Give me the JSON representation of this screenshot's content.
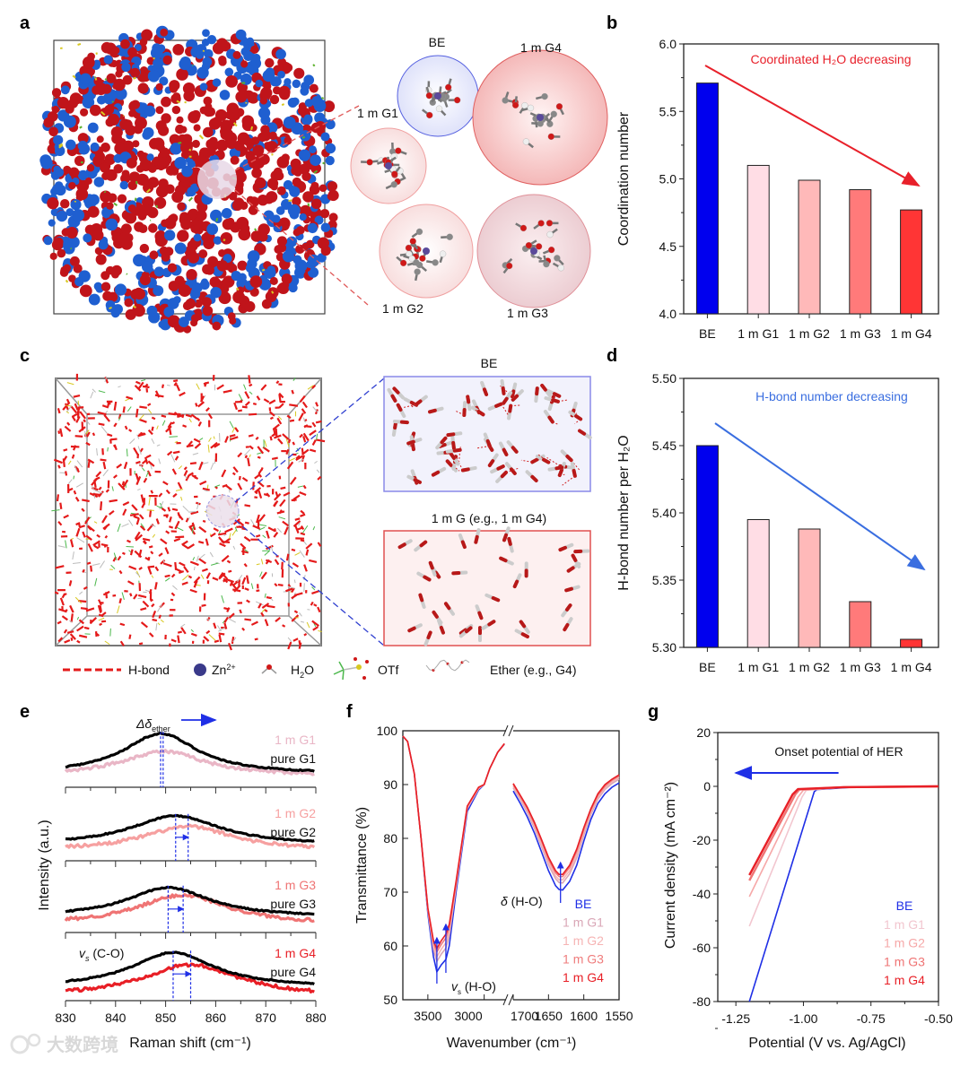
{
  "panel_labels": {
    "a": "a",
    "b": "b",
    "c": "c",
    "d": "d",
    "e": "e",
    "f": "f",
    "g": "g"
  },
  "panel_a": {
    "be": "BE",
    "g1": "1 m G1",
    "g2": "1 m G2",
    "g3": "1 m G3",
    "g4": "1 m G4"
  },
  "panel_c": {
    "inset_top_title": "BE",
    "inset_bottom_title": "1 m G (e.g., 1 m G4)",
    "legend": {
      "hbond": "H-bond",
      "zn": "Zn",
      "zn_sup": "2+",
      "h2o": "H",
      "h2o_sub": "2",
      "h2o_rest": "O",
      "otf": "OTf",
      "ether": "Ether (e.g., G4)"
    }
  },
  "watermark": "大数跨境",
  "colors": {
    "BE": "#1f2fe6",
    "G1": "#e9b6c6",
    "G2": "#f6abab",
    "G3": "#ef7474",
    "G4": "#e81f26"
  },
  "chart_data": [
    {
      "id": "b",
      "type": "bar",
      "categories": [
        "BE",
        "1 m G1",
        "1 m G2",
        "1 m G3",
        "1 m G4"
      ],
      "values": [
        5.71,
        5.1,
        4.99,
        4.92,
        4.77
      ],
      "bar_colors": [
        "#0000ee",
        "#ffdde5",
        "#ffb9b9",
        "#ff7a7a",
        "#ff3535"
      ],
      "ylabel": "Coordination number",
      "ylim": [
        4.0,
        6.0
      ],
      "yticks": [
        4.0,
        4.5,
        5.0,
        5.5,
        6.0
      ],
      "annotation": "Coordinated H₂O decreasing",
      "annotation_color": "#e8202a"
    },
    {
      "id": "d",
      "type": "bar",
      "categories": [
        "BE",
        "1 m G1",
        "1 m G2",
        "1 m G3",
        "1 m G4"
      ],
      "values": [
        5.45,
        5.395,
        5.388,
        5.334,
        5.306
      ],
      "bar_colors": [
        "#0000ee",
        "#ffdde5",
        "#ffb9b9",
        "#ff7a7a",
        "#ff3535"
      ],
      "ylabel": "H-bond number per H₂O",
      "ylim": [
        5.3,
        5.5
      ],
      "yticks": [
        5.3,
        5.35,
        5.4,
        5.45,
        5.5
      ],
      "annotation": "H-bond number decreasing",
      "annotation_color": "#3a6ee0"
    },
    {
      "id": "e",
      "type": "line",
      "xlabel": "Raman shift (cm⁻¹)",
      "ylabel": "Intensity (a.u.)",
      "xlim": [
        830,
        880
      ],
      "xticks": [
        830,
        840,
        850,
        860,
        870,
        880
      ],
      "shift_label": {
        "main": "Δδ",
        "sub": "ether"
      },
      "mode_label": {
        "symbol": "v",
        "sub": "s",
        "text": " (C-O)"
      },
      "subplots": [
        {
          "salt_label": "1 m G1",
          "pure_label": "pure G1",
          "salt_color": "#e9b6c6",
          "pure": {
            "peak": 849.0,
            "amp": 0.75,
            "base": 0.18,
            "width": 9
          },
          "salt": {
            "peak": 849.5,
            "amp": 0.45,
            "base": 0.15,
            "width": 10
          }
        },
        {
          "salt_label": "1 m G2",
          "pure_label": "pure G2",
          "salt_color": "#f6a0a0",
          "pure": {
            "peak": 852.0,
            "amp": 0.55,
            "base": 0.22,
            "width": 11
          },
          "salt": {
            "peak": 854.5,
            "amp": 0.45,
            "base": 0.12,
            "width": 11
          }
        },
        {
          "salt_label": "1 m G3",
          "pure_label": "pure G3",
          "salt_color": "#ef7474",
          "pure": {
            "peak": 850.5,
            "amp": 0.55,
            "base": 0.22,
            "width": 10
          },
          "salt": {
            "peak": 853.5,
            "amp": 0.55,
            "base": 0.08,
            "width": 11
          }
        },
        {
          "salt_label": "1 m G4",
          "pure_label": "pure G4",
          "salt_color": "#e81f26",
          "pure": {
            "peak": 851.5,
            "amp": 0.65,
            "base": 0.18,
            "width": 10
          },
          "salt": {
            "peak": 855.0,
            "amp": 0.6,
            "base": 0.0,
            "width": 12
          }
        }
      ]
    },
    {
      "id": "f",
      "type": "line",
      "xlabel": "Wavenumber (cm⁻¹)",
      "ylabel": "Transmittance (%)",
      "ylim": [
        50,
        100
      ],
      "yticks": [
        50,
        60,
        70,
        80,
        90,
        100
      ],
      "xlim_left": [
        3722,
        2790
      ],
      "xticks_left": [
        3500,
        3000
      ],
      "xlim_right": [
        1700,
        1550
      ],
      "xticks_right": [
        1700,
        1650,
        1600,
        1550
      ],
      "annotations": {
        "stretch": {
          "symbol": "v",
          "sub": "s",
          "text": " (H-O)"
        },
        "bend": {
          "symbol": "δ",
          "text": " (H-O)"
        }
      },
      "x_left": [
        3722,
        3680,
        3620,
        3560,
        3500,
        3450,
        3420,
        3380,
        3340,
        3310,
        3250,
        3150,
        3050,
        3000,
        2950,
        2880,
        2820
      ],
      "x_right": [
        1700,
        1690,
        1680,
        1670,
        1660,
        1650,
        1640,
        1635,
        1630,
        1620,
        1610,
        1600,
        1590,
        1580,
        1570,
        1560,
        1550
      ],
      "series": [
        {
          "name": "BE",
          "color": "#1f2fe6",
          "left": [
            99,
            98,
            92,
            80,
            66,
            58,
            55.2,
            56.5,
            57.5,
            60,
            70,
            85,
            89,
            90,
            93,
            96,
            97.5
          ],
          "right": [
            88.8,
            86.5,
            84,
            81,
            77.5,
            74,
            71.2,
            70.5,
            70.4,
            72,
            75,
            79.5,
            83.5,
            86.5,
            88.3,
            89.5,
            90.3
          ]
        },
        {
          "name": "1 m G1",
          "color": "#d9a6b6",
          "left": [
            99,
            98,
            92,
            80,
            66.5,
            59.4,
            57.1,
            58.5,
            59.6,
            61.8,
            70.9,
            85.5,
            89.2,
            90,
            93,
            96,
            97.5
          ],
          "right": [
            89.4,
            87.2,
            84.8,
            81.9,
            78.5,
            75.1,
            72.5,
            71.8,
            71.7,
            73.4,
            76.4,
            80.6,
            84.4,
            87.3,
            89.1,
            90.2,
            91
          ]
        },
        {
          "name": "1 m G2",
          "color": "#f6b4b4",
          "left": [
            99,
            98,
            92,
            80,
            66.7,
            60,
            58,
            59.4,
            60.6,
            62.6,
            71.3,
            85.7,
            89.3,
            90,
            93,
            96,
            97.6
          ],
          "right": [
            89.7,
            87.5,
            85.2,
            82.3,
            79,
            75.6,
            73,
            72.3,
            72.3,
            74,
            77,
            81.1,
            84.8,
            87.7,
            89.4,
            90.5,
            91.3
          ]
        },
        {
          "name": "1 m G3",
          "color": "#ef7c7c",
          "left": [
            99,
            98,
            92,
            80,
            66.9,
            60.6,
            58.9,
            60.3,
            61.5,
            63.4,
            71.7,
            85.9,
            89.4,
            90,
            93,
            96,
            97.6
          ],
          "right": [
            90,
            87.8,
            85.5,
            82.7,
            79.5,
            76.1,
            73.6,
            72.9,
            72.9,
            74.6,
            77.6,
            81.6,
            85.2,
            88,
            89.7,
            90.8,
            91.6
          ]
        },
        {
          "name": "1 m G4",
          "color": "#e81f26",
          "left": [
            99,
            98,
            92,
            80,
            67,
            61,
            59.5,
            61,
            62.2,
            64,
            72,
            86,
            89.5,
            90,
            93,
            96,
            97.6
          ],
          "right": [
            90.2,
            88,
            85.8,
            83,
            79.8,
            76.5,
            74,
            73.3,
            73.3,
            75,
            78,
            82,
            85.5,
            88.3,
            90,
            91,
            91.8
          ]
        }
      ]
    },
    {
      "id": "g",
      "type": "line",
      "xlabel": "Potential (V vs. Ag/AgCl)",
      "ylabel": "Current density (mA cm⁻²)",
      "xlim": [
        -1.317,
        -0.5
      ],
      "xticks": [
        -1.25,
        -1.0,
        -0.75,
        -0.5
      ],
      "ylim": [
        -80,
        20
      ],
      "yticks": [
        -80,
        -60,
        -40,
        -20,
        0,
        20
      ],
      "annotation": "Onset potential of HER",
      "series": [
        {
          "name": "BE",
          "color": "#1f2fe6",
          "points": [
            [
              -0.5,
              0
            ],
            [
              -0.8,
              -0.2
            ],
            [
              -0.95,
              -1.2
            ],
            [
              -0.96,
              -2
            ],
            [
              -1.2,
              -80
            ]
          ]
        },
        {
          "name": "1 m G1",
          "color": "#f2c6cf",
          "points": [
            [
              -0.5,
              0
            ],
            [
              -0.85,
              -0.3
            ],
            [
              -0.99,
              -1.5
            ],
            [
              -1.005,
              -4
            ],
            [
              -1.2,
              -52
            ]
          ]
        },
        {
          "name": "1 m G2",
          "color": "#f6a8a8",
          "points": [
            [
              -0.5,
              0
            ],
            [
              -0.85,
              -0.3
            ],
            [
              -1.0,
              -1.4
            ],
            [
              -1.02,
              -4
            ],
            [
              -1.2,
              -41
            ]
          ]
        },
        {
          "name": "1 m G3",
          "color": "#ef7474",
          "points": [
            [
              -0.5,
              0
            ],
            [
              -0.85,
              -0.3
            ],
            [
              -1.015,
              -1.2
            ],
            [
              -1.03,
              -3
            ],
            [
              -1.2,
              -35
            ]
          ]
        },
        {
          "name": "1 m G4",
          "color": "#e81f26",
          "points": [
            [
              -0.5,
              0
            ],
            [
              -0.85,
              -0.3
            ],
            [
              -1.02,
              -1.0
            ],
            [
              -1.04,
              -3
            ],
            [
              -1.2,
              -33
            ]
          ]
        }
      ]
    }
  ]
}
